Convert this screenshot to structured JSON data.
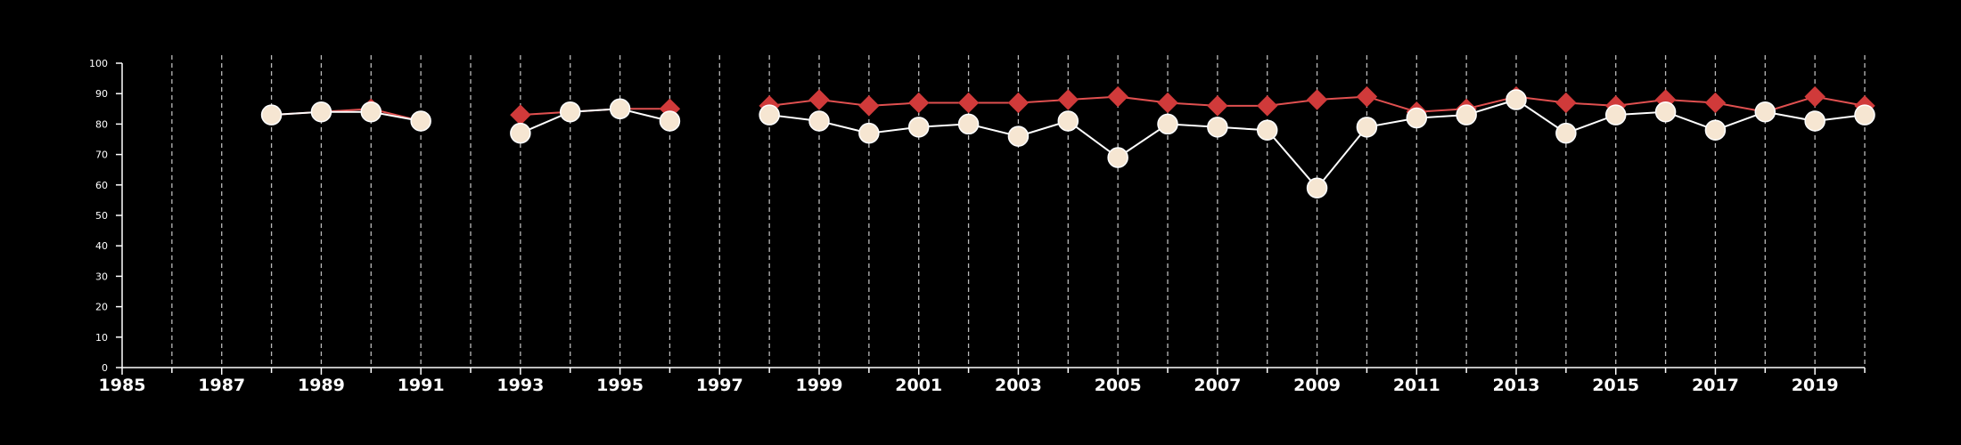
{
  "chart_data": {
    "type": "line",
    "title": "",
    "xlabel": "",
    "ylabel": "",
    "xlim": [
      1985,
      2020
    ],
    "ylim": [
      0,
      100
    ],
    "y_ticks": [
      0,
      10,
      20,
      30,
      40,
      50,
      60,
      70,
      80,
      90,
      100
    ],
    "x_ticks": [
      1985,
      1987,
      1989,
      1991,
      1993,
      1995,
      1997,
      1999,
      2001,
      2003,
      2005,
      2007,
      2009,
      2011,
      2013,
      2015,
      2017,
      2019
    ],
    "grid": "vertical dashed lines at every year",
    "legend": "none",
    "colors": {
      "background": "#000000",
      "axis": "#ffffff",
      "grid": "#bbbbbb"
    },
    "series": [
      {
        "marker": "diamond",
        "color": "#d03a3a",
        "line_color": "#e05050",
        "points": [
          [
            1988,
            83
          ],
          [
            1989,
            84
          ],
          [
            1990,
            85
          ],
          [
            1991,
            81
          ],
          null,
          [
            1993,
            83
          ],
          [
            1994,
            84
          ],
          [
            1995,
            85
          ],
          [
            1996,
            85
          ],
          null,
          [
            1998,
            86
          ],
          [
            1999,
            88
          ],
          [
            2000,
            86
          ],
          [
            2001,
            87
          ],
          [
            2002,
            87
          ],
          [
            2003,
            87
          ],
          [
            2004,
            88
          ],
          [
            2005,
            89
          ],
          [
            2006,
            87
          ],
          [
            2007,
            86
          ],
          [
            2008,
            86
          ],
          [
            2009,
            88
          ],
          [
            2010,
            89
          ],
          [
            2011,
            84
          ],
          [
            2012,
            85
          ],
          [
            2013,
            89
          ],
          [
            2014,
            87
          ],
          [
            2015,
            86
          ],
          [
            2016,
            88
          ],
          [
            2017,
            87
          ],
          [
            2018,
            84
          ],
          [
            2019,
            89
          ],
          [
            2020,
            86
          ]
        ]
      },
      {
        "marker": "circle",
        "color": "#f6e6d2",
        "line_color": "#ffffff",
        "points": [
          [
            1988,
            83
          ],
          [
            1989,
            84
          ],
          [
            1990,
            84
          ],
          [
            1991,
            81
          ],
          null,
          [
            1993,
            77
          ],
          [
            1994,
            84
          ],
          [
            1995,
            85
          ],
          [
            1996,
            81
          ],
          null,
          [
            1998,
            83
          ],
          [
            1999,
            81
          ],
          [
            2000,
            77
          ],
          [
            2001,
            79
          ],
          [
            2002,
            80
          ],
          [
            2003,
            76
          ],
          [
            2004,
            81
          ],
          [
            2005,
            69
          ],
          [
            2006,
            80
          ],
          [
            2007,
            79
          ],
          [
            2008,
            78
          ],
          [
            2009,
            59
          ],
          [
            2010,
            79
          ],
          [
            2011,
            82
          ],
          [
            2012,
            83
          ],
          [
            2013,
            88
          ],
          [
            2014,
            77
          ],
          [
            2015,
            83
          ],
          [
            2016,
            84
          ],
          [
            2017,
            78
          ],
          [
            2018,
            84
          ],
          [
            2019,
            81
          ],
          [
            2020,
            83
          ]
        ]
      }
    ]
  }
}
